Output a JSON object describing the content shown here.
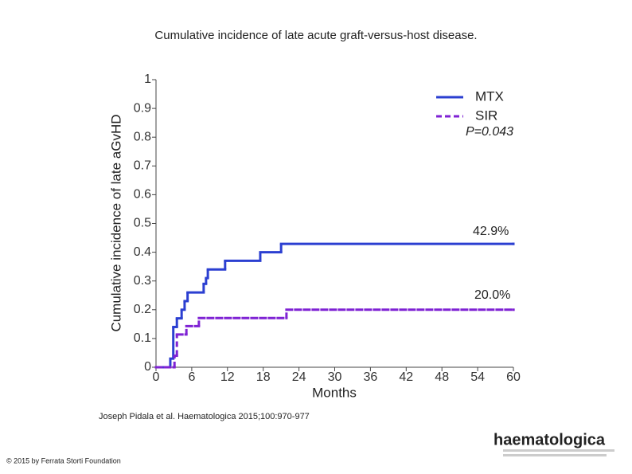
{
  "chart_data": {
    "type": "step",
    "title": "Cumulative incidence of late acute graft-versus-host disease.",
    "xlabel": "Months",
    "ylabel": "Cumulative incidence of late aGvHD",
    "xlim": [
      0,
      60
    ],
    "ylim": [
      0,
      1
    ],
    "xticks": [
      0,
      6,
      12,
      18,
      24,
      30,
      36,
      42,
      48,
      54,
      60
    ],
    "yticks": [
      0,
      0.1,
      0.2,
      0.3,
      0.4,
      0.5,
      0.6,
      0.7,
      0.8,
      0.9,
      1
    ],
    "legend": "upper right",
    "series": [
      {
        "name": "MTX",
        "color": "#2b3fd1",
        "dashed": false,
        "x": [
          0,
          2.4,
          2.9,
          3.5,
          4.3,
          4.8,
          5.3,
          8,
          8.4,
          8.7,
          11.6,
          17.5,
          21,
          60
        ],
        "values": [
          0,
          0.03,
          0.14,
          0.17,
          0.2,
          0.23,
          0.26,
          0.29,
          0.31,
          0.34,
          0.37,
          0.4,
          0.429,
          0.429
        ]
      },
      {
        "name": "SIR",
        "color": "#7f22d4",
        "dashed": true,
        "x": [
          0,
          3.1,
          3.5,
          5.1,
          7.2,
          21.9,
          60
        ],
        "values": [
          0,
          0.04,
          0.114,
          0.143,
          0.171,
          0.2,
          0.2
        ]
      }
    ],
    "annotations": [
      "P=0.043",
      "42.9%",
      "20.0%"
    ]
  },
  "caption": "Joseph Pidala et al. Haematologica 2015;100:970-977",
  "copyright": "© 2015 by Ferrata Storti Foundation",
  "logo": "haematologica"
}
